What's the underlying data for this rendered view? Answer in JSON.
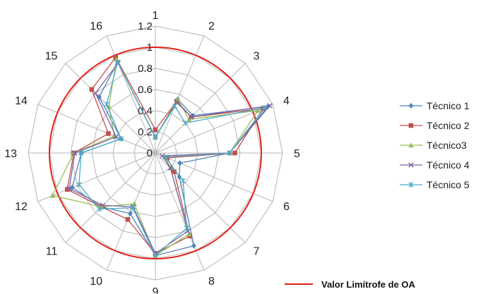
{
  "chart_data": {
    "type": "radar",
    "categories": [
      "1",
      "2",
      "3",
      "4",
      "5",
      "6",
      "7",
      "8",
      "9",
      "10",
      "11",
      "12",
      "13",
      "14",
      "15",
      "16"
    ],
    "rlim": [
      0,
      1.2
    ],
    "ticks": [
      "0",
      "0.2",
      "0.4",
      "0.6",
      "0.8",
      "1",
      "1.2"
    ],
    "grid": true,
    "threshold": {
      "name": "Valor Limítrofe de OA",
      "value": 1.0,
      "color": "#e32119"
    },
    "series": [
      {
        "name": "Técnico 1",
        "color": "#4f81bd",
        "marker": "diamond",
        "values": [
          0.15,
          0.55,
          0.5,
          1.15,
          0.7,
          0.25,
          0.32,
          0.95,
          0.97,
          0.62,
          0.72,
          0.85,
          0.7,
          0.35,
          0.75,
          0.93
        ]
      },
      {
        "name": "Técnico 2",
        "color": "#c0504d",
        "marker": "square",
        "values": [
          0.22,
          0.53,
          0.48,
          1.1,
          0.75,
          0.12,
          0.25,
          0.85,
          0.95,
          0.68,
          0.72,
          0.9,
          0.77,
          0.48,
          0.85,
          0.98
        ]
      },
      {
        "name": "Técnico3",
        "color": "#9bbb59",
        "marker": "triangle",
        "values": [
          0.15,
          0.55,
          0.45,
          1.05,
          0.7,
          0.1,
          0.2,
          0.83,
          0.97,
          0.52,
          0.72,
          1.05,
          0.77,
          0.42,
          0.62,
          0.96
        ]
      },
      {
        "name": "Técnico 4",
        "color": "#8064a2",
        "marker": "x",
        "values": [
          0.15,
          0.52,
          0.48,
          1.17,
          0.7,
          0.07,
          0.2,
          0.8,
          0.95,
          0.55,
          0.7,
          0.88,
          0.76,
          0.4,
          0.8,
          0.92
        ]
      },
      {
        "name": "Técnico 5",
        "color": "#4bacc6",
        "marker": "star",
        "values": [
          0.15,
          0.48,
          0.4,
          1.12,
          0.7,
          0.1,
          0.37,
          0.77,
          0.97,
          0.56,
          0.75,
          0.78,
          0.7,
          0.35,
          0.65,
          0.93
        ]
      }
    ]
  }
}
